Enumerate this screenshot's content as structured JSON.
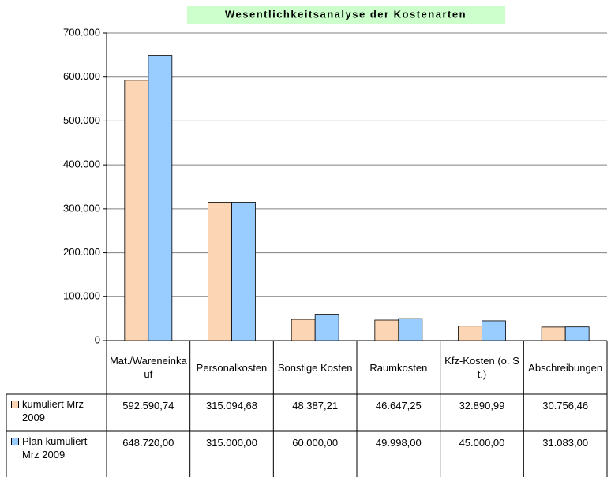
{
  "chart_data": {
    "type": "bar",
    "title": "Wesentlichkeitsanalyse der Kostenarten",
    "categories": [
      "Mat./Wareneinkauf",
      "Personalkosten",
      "Sonstige Kosten",
      "Raumkosten",
      "Kfz-Kosten (o. St.)",
      "Abschreibungen"
    ],
    "series": [
      {
        "name": "kumuliert Mrz 2009",
        "color": "#fcd5b4",
        "values": [
          592590.74,
          315094.68,
          48387.21,
          46647.25,
          32890.99,
          30756.46
        ],
        "value_labels": [
          "592.590,74",
          "315.094,68",
          "48.387,21",
          "46.647,25",
          "32.890,99",
          "30.756,46"
        ]
      },
      {
        "name": "Plan kumuliert Mrz 2009",
        "color": "#99ccff",
        "values": [
          648720.0,
          315000.0,
          60000.0,
          49998.0,
          45000.0,
          31083.0
        ],
        "value_labels": [
          "648.720,00",
          "315.000,00",
          "60.000,00",
          "49.998,00",
          "45.000,00",
          "31.083,00"
        ]
      }
    ],
    "ylim": [
      0,
      700000
    ],
    "yticks": [
      0,
      {
        "value": 100000,
        "label": "100.000"
      },
      {
        "value": 200000,
        "label": "200.000"
      },
      {
        "value": 300000,
        "label": "300.000"
      },
      {
        "value": 400000,
        "label": "400.000"
      },
      {
        "value": 500000,
        "label": "500.000"
      },
      {
        "value": 600000,
        "label": "600.000"
      },
      {
        "value": 700000,
        "label": "700.000"
      }
    ],
    "grid": true
  }
}
